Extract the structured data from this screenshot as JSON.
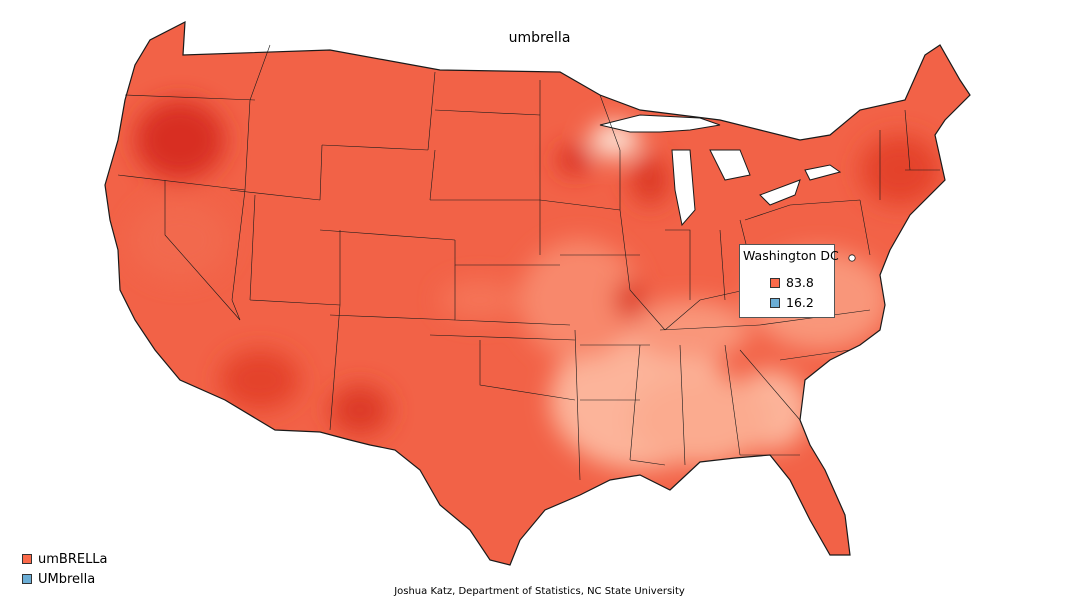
{
  "map": {
    "title": "umbrella",
    "region": "Contiguous United States",
    "fill_scale": {
      "low_color": "#fcbba1",
      "mid_color": "#fb6a4a",
      "high_color": "#d7301f",
      "border_color": "#1a1a1a"
    }
  },
  "tooltip": {
    "location": "Washington DC",
    "values": [
      {
        "value": "83.8",
        "color": "#fb6a4a"
      },
      {
        "value": "16.2",
        "color": "#6baed6"
      }
    ]
  },
  "legend": {
    "items": [
      {
        "label": "umBRELLa",
        "color": "#fb6a4a"
      },
      {
        "label": "UMbrella",
        "color": "#6baed6"
      }
    ]
  },
  "credit": "Joshua Katz, Department of Statistics, NC State University"
}
